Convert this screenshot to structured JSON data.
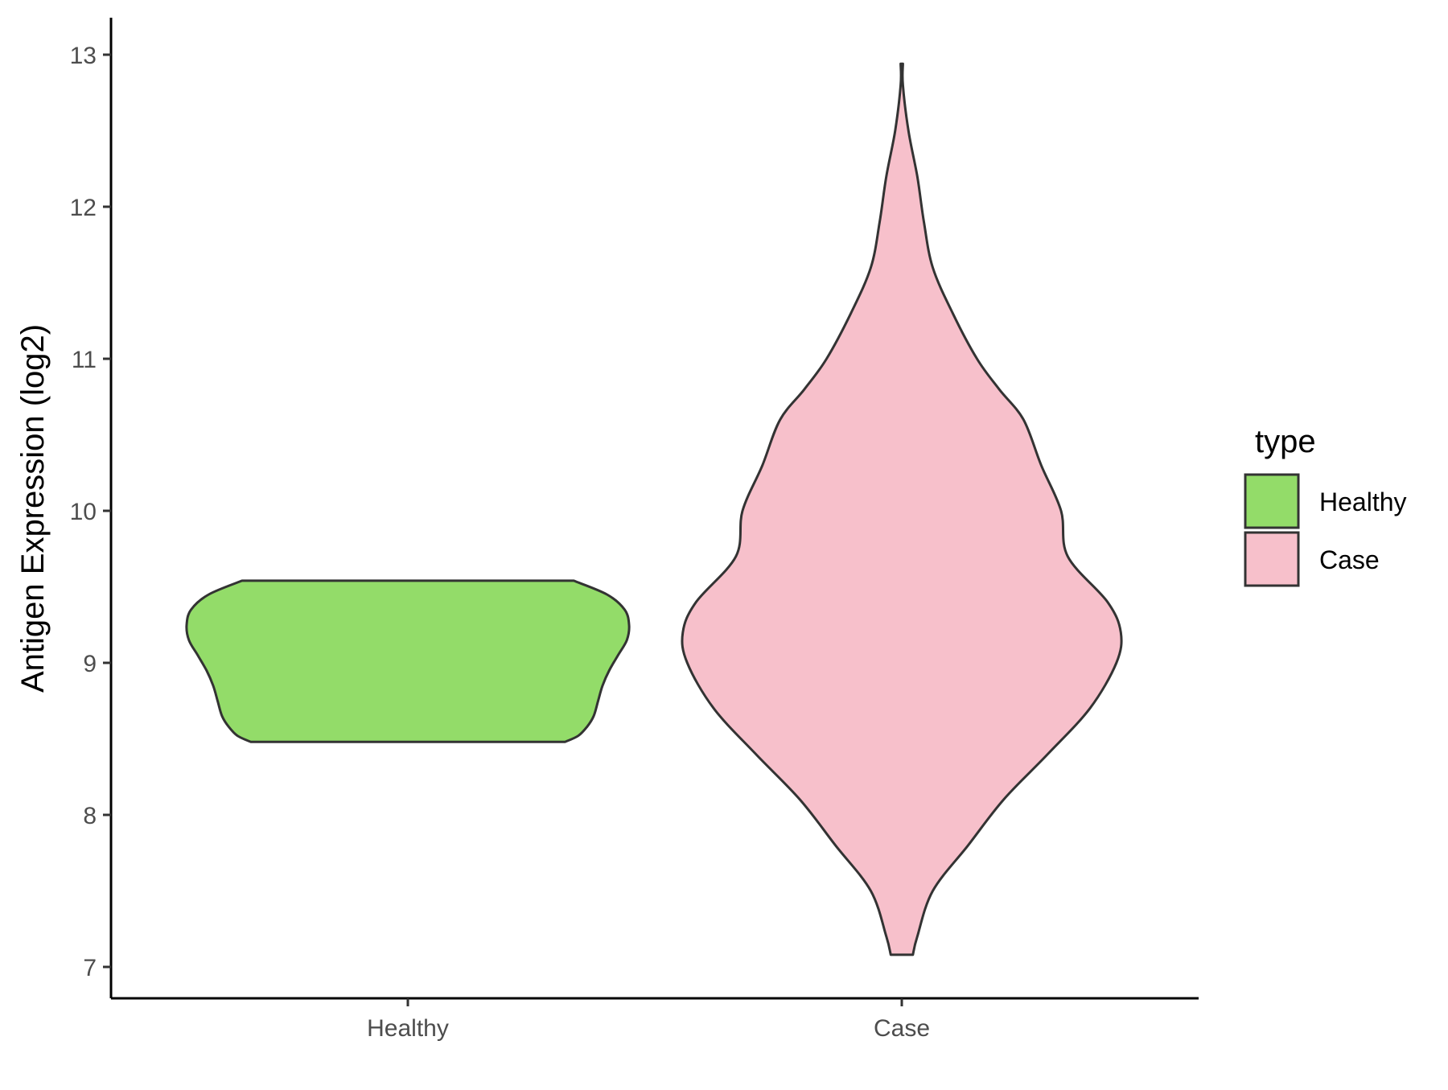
{
  "chart_data": {
    "type": "violin",
    "categories": [
      "Healthy",
      "Case"
    ],
    "ylabel": "Antigen Expression (log2)",
    "xlabel": "",
    "ylim": [
      6.8,
      13.25
    ],
    "yticks": [
      7,
      8,
      9,
      10,
      11,
      12,
      13
    ],
    "grid": false,
    "legend": {
      "title": "type",
      "position": "right",
      "entries": [
        {
          "label": "Healthy",
          "color": "#93DC69"
        },
        {
          "label": "Case",
          "color": "#F7C0CB"
        }
      ]
    },
    "series": [
      {
        "category": "Healthy",
        "color": "#93DC69",
        "outline": "#333333",
        "min": 8.48,
        "max": 9.54,
        "profile": [
          {
            "y": 8.48,
            "w": 0.71
          },
          {
            "y": 8.52,
            "w": 0.77
          },
          {
            "y": 8.58,
            "w": 0.81
          },
          {
            "y": 8.65,
            "w": 0.84
          },
          {
            "y": 8.75,
            "w": 0.86
          },
          {
            "y": 8.85,
            "w": 0.88
          },
          {
            "y": 8.95,
            "w": 0.91
          },
          {
            "y": 9.05,
            "w": 0.95
          },
          {
            "y": 9.15,
            "w": 0.99
          },
          {
            "y": 9.25,
            "w": 1.0
          },
          {
            "y": 9.35,
            "w": 0.98
          },
          {
            "y": 9.45,
            "w": 0.9
          },
          {
            "y": 9.54,
            "w": 0.75
          }
        ]
      },
      {
        "category": "Case",
        "color": "#F7C0CB",
        "outline": "#333333",
        "min": 7.08,
        "max": 12.94,
        "profile": [
          {
            "y": 7.08,
            "w": 0.05
          },
          {
            "y": 7.2,
            "w": 0.07
          },
          {
            "y": 7.5,
            "w": 0.14
          },
          {
            "y": 7.8,
            "w": 0.3
          },
          {
            "y": 8.1,
            "w": 0.46
          },
          {
            "y": 8.4,
            "w": 0.66
          },
          {
            "y": 8.7,
            "w": 0.85
          },
          {
            "y": 9.0,
            "w": 0.97
          },
          {
            "y": 9.2,
            "w": 0.99
          },
          {
            "y": 9.4,
            "w": 0.93
          },
          {
            "y": 9.7,
            "w": 0.75
          },
          {
            "y": 10.0,
            "w": 0.72
          },
          {
            "y": 10.3,
            "w": 0.63
          },
          {
            "y": 10.6,
            "w": 0.55
          },
          {
            "y": 10.8,
            "w": 0.44
          },
          {
            "y": 11.0,
            "w": 0.34
          },
          {
            "y": 11.3,
            "w": 0.23
          },
          {
            "y": 11.6,
            "w": 0.14
          },
          {
            "y": 11.9,
            "w": 0.1
          },
          {
            "y": 12.2,
            "w": 0.07
          },
          {
            "y": 12.5,
            "w": 0.03
          },
          {
            "y": 12.8,
            "w": 0.005
          },
          {
            "y": 12.94,
            "w": 0.005
          }
        ]
      }
    ]
  }
}
